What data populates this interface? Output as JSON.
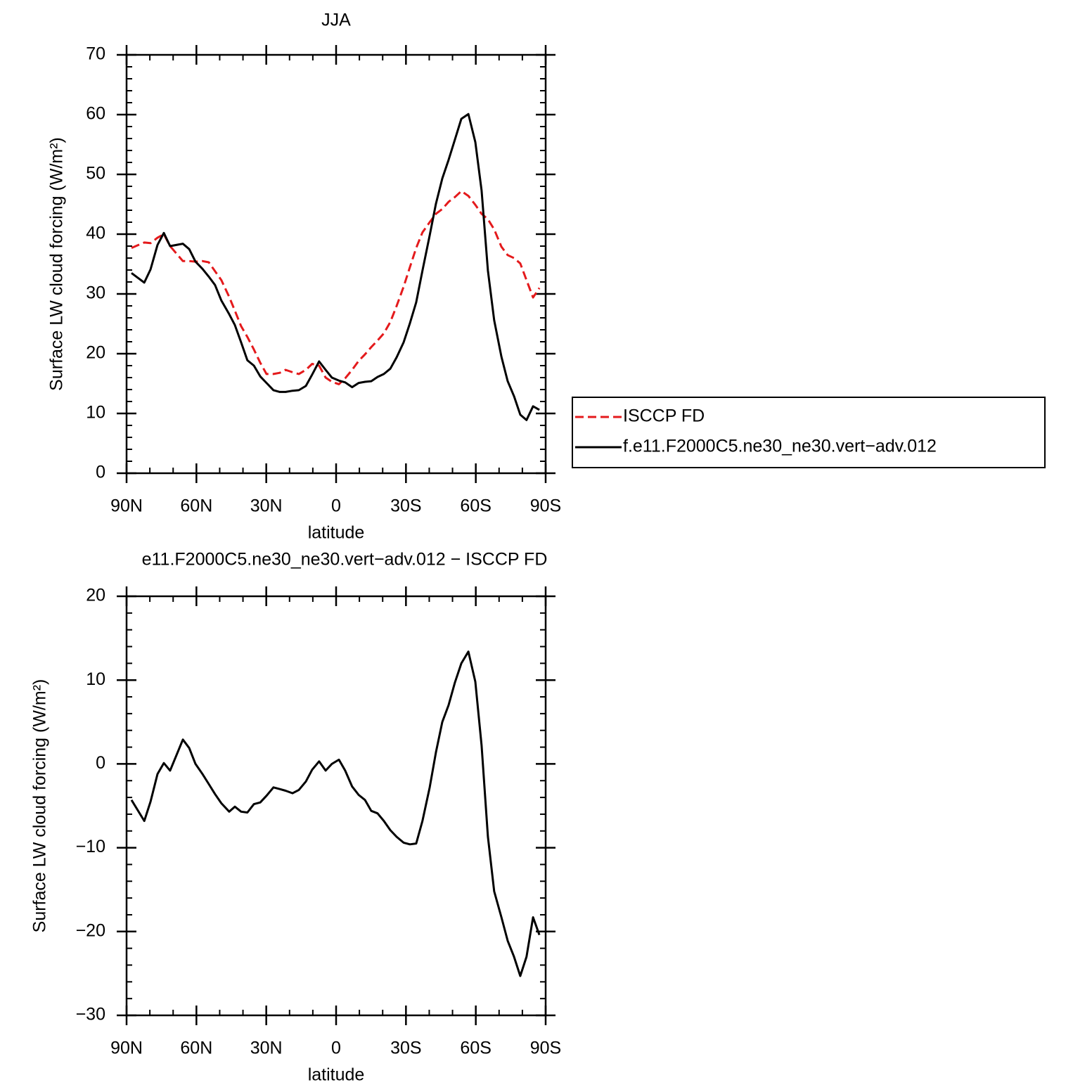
{
  "chart_data": [
    {
      "type": "line",
      "title": "JJA",
      "xlabel": "latitude",
      "ylabel": "Surface LW cloud forcing (W/m²)",
      "x": [
        87.9,
        82.4,
        79.7,
        76.7,
        74.0,
        71.3,
        65.8,
        63.1,
        60.4,
        57.4,
        54.7,
        52.0,
        49.3,
        45.9,
        43.5,
        40.8,
        38.1,
        35.3,
        32.6,
        29.9,
        26.9,
        24.2,
        21.7,
        18.7,
        16.0,
        13.0,
        10.3,
        7.3,
        4.5,
        1.8,
        -1.2,
        -3.9,
        -6.9,
        -9.7,
        -12.4,
        -15.1,
        -17.8,
        -20.5,
        -23.3,
        -26.0,
        -29.0,
        -31.7,
        -34.4,
        -37.1,
        -40.2,
        -42.9,
        -45.6,
        -48.3,
        -51.0,
        -53.8,
        -56.8,
        -59.8,
        -62.5,
        -65.2,
        -67.9,
        -71.0,
        -73.7,
        -76.4,
        -79.1,
        -81.8,
        -84.6,
        -87.3
      ],
      "series": [
        {
          "name": "ISCCP FD",
          "color": "#e41a1c",
          "dashed": true,
          "values": [
            37.7,
            38.6,
            38.5,
            39.4,
            40.0,
            38.0,
            35.5,
            35.5,
            35.4,
            35.5,
            35.3,
            33.8,
            32.3,
            29.5,
            27.2,
            24.6,
            22.8,
            20.7,
            18.5,
            16.6,
            16.6,
            16.8,
            17.3,
            16.9,
            16.6,
            17.3,
            18.3,
            18.0,
            16.0,
            15.3,
            14.9,
            15.9,
            17.3,
            18.8,
            19.9,
            21.1,
            22.2,
            23.4,
            25.3,
            28.0,
            31.2,
            34.5,
            37.7,
            40.3,
            42.0,
            43.4,
            44.2,
            45.4,
            46.2,
            47.2,
            46.4,
            44.9,
            43.4,
            42.5,
            40.8,
            37.9,
            36.5,
            36.0,
            35.1,
            32.3,
            29.4,
            31.0
          ]
        },
        {
          "name": "f.e11.F2000C5.ne30_ne30.vert−adv.012",
          "color": "#000000",
          "dashed": false,
          "values": [
            33.5,
            31.9,
            34.1,
            38.2,
            40.2,
            38.0,
            38.4,
            37.5,
            35.4,
            34.2,
            32.9,
            31.5,
            28.9,
            26.6,
            24.8,
            21.9,
            18.9,
            18.0,
            16.2,
            15.1,
            13.9,
            13.6,
            13.6,
            13.8,
            13.9,
            14.6,
            16.5,
            18.7,
            17.3,
            16.0,
            15.5,
            15.2,
            14.4,
            15.1,
            15.3,
            15.4,
            16.1,
            16.6,
            17.5,
            19.4,
            21.9,
            25.1,
            28.6,
            33.9,
            39.8,
            45.1,
            49.3,
            52.4,
            55.8,
            59.3,
            60.1,
            55.4,
            47.3,
            33.9,
            25.6,
            19.5,
            15.4,
            12.9,
            9.8,
            8.9,
            11.2,
            10.6
          ]
        }
      ],
      "xlim": [
        90,
        -90
      ],
      "xticks": [
        {
          "value": 90,
          "label": "90N"
        },
        {
          "value": 60,
          "label": "60N"
        },
        {
          "value": 30,
          "label": "30N"
        },
        0,
        {
          "value": -30,
          "label": "30S"
        },
        {
          "value": -60,
          "label": "60S"
        },
        {
          "value": -90,
          "label": "90S"
        }
      ],
      "ylim": [
        0,
        70
      ],
      "yticks": [
        0,
        10,
        20,
        30,
        40,
        50,
        60,
        70
      ],
      "legend": "right"
    },
    {
      "type": "line",
      "title": "e11.F2000C5.ne30_ne30.vert−adv.012 − ISCCP FD",
      "xlabel": "latitude",
      "ylabel": "Surface LW cloud forcing (W/m²)",
      "x": [
        87.9,
        82.4,
        79.7,
        76.7,
        74.0,
        71.3,
        65.8,
        63.1,
        60.4,
        57.4,
        54.7,
        52.0,
        49.3,
        45.9,
        43.5,
        40.8,
        38.1,
        35.3,
        32.6,
        29.9,
        26.9,
        24.2,
        21.7,
        18.7,
        16.0,
        13.0,
        10.3,
        7.3,
        4.5,
        1.8,
        -1.2,
        -3.9,
        -6.9,
        -9.7,
        -12.4,
        -15.1,
        -17.8,
        -20.5,
        -23.3,
        -26.0,
        -29.0,
        -31.7,
        -34.4,
        -37.1,
        -40.2,
        -42.9,
        -45.6,
        -48.3,
        -51.0,
        -53.8,
        -56.8,
        -59.8,
        -62.5,
        -65.2,
        -67.9,
        -71.0,
        -73.7,
        -76.4,
        -79.1,
        -81.8,
        -84.6,
        -87.3
      ],
      "series": [
        {
          "color": "#000000",
          "dashed": false,
          "values": [
            -4.3,
            -6.8,
            -4.5,
            -1.2,
            0.1,
            -0.8,
            2.9,
            1.9,
            0.0,
            -1.2,
            -2.4,
            -3.6,
            -4.7,
            -5.7,
            -5.1,
            -5.7,
            -5.8,
            -4.8,
            -4.6,
            -3.8,
            -2.8,
            -3.0,
            -3.2,
            -3.5,
            -3.1,
            -2.1,
            -0.7,
            0.3,
            -0.8,
            0.0,
            0.5,
            -0.8,
            -2.7,
            -3.7,
            -4.3,
            -5.6,
            -5.9,
            -6.8,
            -7.9,
            -8.7,
            -9.4,
            -9.6,
            -9.5,
            -6.8,
            -2.8,
            1.4,
            5.0,
            7.0,
            9.7,
            12.0,
            13.4,
            9.8,
            2.2,
            -8.7,
            -15.2,
            -18.3,
            -21.1,
            -23.0,
            -25.3,
            -23.0,
            -18.3,
            -20.4
          ]
        }
      ],
      "xlim": [
        90,
        -90
      ],
      "xticks": [
        {
          "value": 90,
          "label": "90N"
        },
        {
          "value": 60,
          "label": "60N"
        },
        {
          "value": 30,
          "label": "30N"
        },
        0,
        {
          "value": -30,
          "label": "30S"
        },
        {
          "value": -60,
          "label": "60S"
        },
        {
          "value": -90,
          "label": "90S"
        }
      ],
      "ylim": [
        -30,
        20
      ],
      "yticks": [
        {
          "value": -30,
          "label": "−30"
        },
        {
          "value": -20,
          "label": "−20"
        },
        {
          "value": -10,
          "label": "−10"
        },
        0,
        10,
        20
      ]
    }
  ]
}
